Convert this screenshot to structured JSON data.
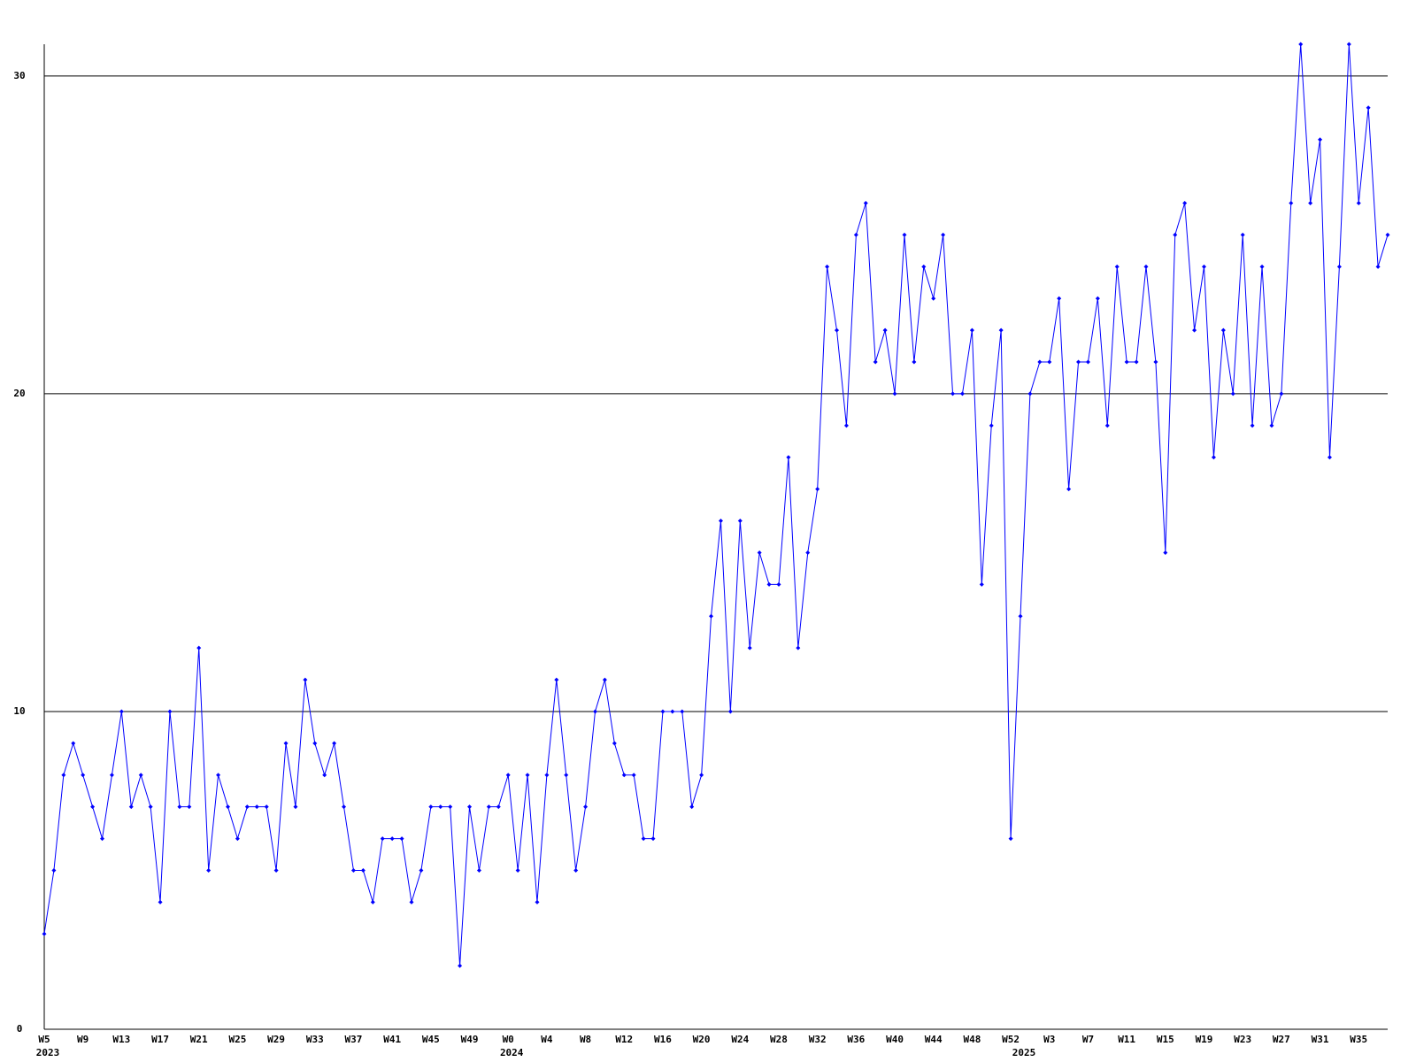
{
  "chart_data": {
    "type": "line",
    "categories": [
      "W5",
      null,
      null,
      null,
      "W9",
      null,
      null,
      null,
      "W13",
      null,
      null,
      null,
      "W17",
      null,
      null,
      null,
      "W21",
      null,
      null,
      null,
      "W25",
      null,
      null,
      null,
      "W29",
      null,
      null,
      null,
      "W33",
      null,
      null,
      null,
      "W37",
      null,
      null,
      null,
      "W41",
      null,
      null,
      null,
      "W45",
      null,
      null,
      null,
      "W49",
      null,
      null,
      null,
      "W0",
      null,
      null,
      null,
      "W4",
      null,
      null,
      null,
      "W8",
      null,
      null,
      null,
      "W12",
      null,
      null,
      null,
      "W16",
      null,
      null,
      null,
      "W20",
      null,
      null,
      null,
      "W24",
      null,
      null,
      null,
      "W28",
      null,
      null,
      null,
      "W32",
      null,
      null,
      null,
      "W36",
      null,
      null,
      null,
      "W40",
      null,
      null,
      null,
      "W44",
      null,
      null,
      null,
      "W48",
      null,
      null,
      null,
      "W52",
      null,
      null,
      null,
      "W3",
      null,
      null,
      null,
      "W7",
      null,
      null,
      null,
      "W11",
      null,
      null,
      null,
      "W15",
      null,
      null,
      null,
      "W19",
      null,
      null,
      null,
      "W23",
      null,
      null,
      null,
      "W27",
      null,
      null,
      null,
      "W31",
      null,
      null,
      null,
      "W35",
      null,
      null,
      null
    ],
    "years": [
      "2023",
      null,
      null,
      null,
      null,
      null,
      null,
      null,
      null,
      null,
      null,
      null,
      null,
      null,
      null,
      null,
      null,
      null,
      null,
      null,
      null,
      null,
      null,
      null,
      null,
      null,
      null,
      null,
      null,
      null,
      null,
      null,
      null,
      null,
      null,
      null,
      null,
      null,
      null,
      null,
      null,
      null,
      null,
      null,
      null,
      null,
      null,
      null,
      "2024",
      null,
      null,
      null,
      null,
      null,
      null,
      null,
      null,
      null,
      null,
      null,
      null,
      null,
      null,
      null,
      null,
      null,
      null,
      null,
      null,
      null,
      null,
      null,
      null,
      null,
      null,
      null,
      null,
      null,
      null,
      null,
      null,
      null,
      null,
      null,
      null,
      null,
      null,
      null,
      null,
      null,
      null,
      null,
      null,
      null,
      null,
      null,
      null,
      null,
      null,
      null,
      null,
      "2025",
      null,
      null,
      null,
      null,
      null,
      null,
      null,
      null,
      null,
      null,
      null,
      null,
      null,
      null,
      null,
      null,
      null,
      null,
      null,
      null,
      null,
      null,
      null,
      null,
      null,
      null,
      null,
      null,
      null,
      null,
      null,
      null,
      null,
      null,
      null,
      null,
      null
    ],
    "values": [
      3,
      5,
      8,
      9,
      8,
      7,
      6,
      8,
      10,
      7,
      8,
      7,
      4,
      10,
      7,
      7,
      12,
      5,
      8,
      7,
      6,
      7,
      7,
      7,
      5,
      9,
      7,
      11,
      9,
      8,
      9,
      7,
      5,
      5,
      4,
      6,
      6,
      6,
      4,
      5,
      7,
      7,
      7,
      2,
      7,
      5,
      7,
      7,
      8,
      5,
      8,
      4,
      8,
      11,
      8,
      5,
      7,
      10,
      11,
      9,
      8,
      8,
      6,
      6,
      10,
      10,
      10,
      7,
      8,
      13,
      16,
      10,
      16,
      12,
      15,
      14,
      14,
      18,
      12,
      15,
      17,
      24,
      22,
      19,
      25,
      26,
      21,
      22,
      20,
      25,
      21,
      24,
      23,
      25,
      20,
      20,
      22,
      14,
      19,
      22,
      6,
      13,
      20,
      21,
      21,
      23,
      17,
      21,
      21,
      23,
      19,
      24,
      21,
      21,
      24,
      21,
      15,
      25,
      26,
      22,
      24,
      18,
      22,
      20,
      25,
      19,
      24,
      19,
      20,
      26,
      31,
      26,
      28,
      18,
      24,
      31,
      26,
      29,
      24,
      25
    ],
    "color": "#0000ff",
    "ylim": [
      0,
      31
    ],
    "yticks": [
      0,
      10,
      20,
      30
    ],
    "grid": true
  }
}
